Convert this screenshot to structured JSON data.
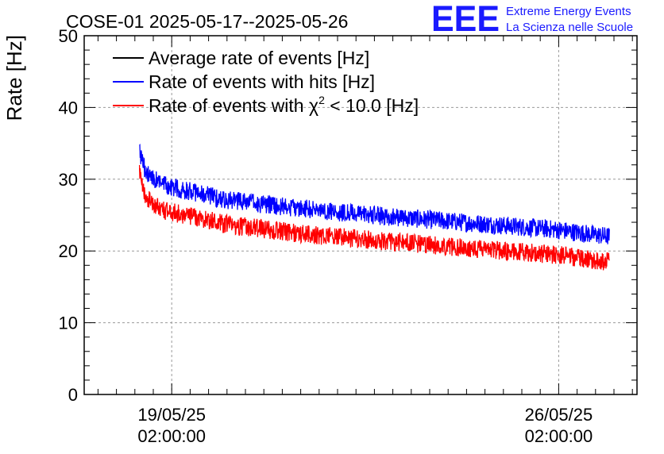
{
  "chart_data": {
    "type": "line",
    "title": "COSE-01 2025-05-17--2025-05-26",
    "xlabel": "",
    "ylabel": "Rate [Hz]",
    "x_axis_type": "time",
    "xlim": [
      "2025-05-17 12:00:00",
      "2025-05-27 12:00:00"
    ],
    "ylim": [
      0,
      50
    ],
    "y_ticks": [
      0,
      10,
      20,
      30,
      40,
      50
    ],
    "x_ticks": [
      {
        "value": "2025-05-19 02:00:00",
        "line1": "19/05/25",
        "line2": "02:00:00"
      },
      {
        "value": "2025-05-26 02:00:00",
        "line1": "26/05/25",
        "line2": "02:00:00"
      }
    ],
    "grid": true,
    "legend_position": "top-left",
    "series": [
      {
        "name": "Average rate of events [Hz]",
        "color": "#000000",
        "x": [],
        "values": []
      },
      {
        "name": "Rate of events with hits [Hz]",
        "color": "#0000ff",
        "noise": 1.3,
        "x": [
          "2025-05-18 12:00",
          "2025-05-18 13:00",
          "2025-05-18 15:00",
          "2025-05-18 18:00",
          "2025-05-19 00:00",
          "2025-05-19 12:00",
          "2025-05-20 00:00",
          "2025-05-21 00:00",
          "2025-05-22 00:00",
          "2025-05-23 00:00",
          "2025-05-24 00:00",
          "2025-05-25 00:00",
          "2025-05-26 00:00",
          "2025-05-26 12:00",
          "2025-05-27 00:00"
        ],
        "values": [
          34.5,
          32.5,
          31.0,
          30.0,
          29.0,
          28.2,
          27.2,
          26.3,
          25.5,
          24.8,
          24.2,
          23.6,
          23.0,
          22.5,
          22.0
        ]
      },
      {
        "name": "Rate of events with χ² < 10.0 [Hz]",
        "color": "#ff0000",
        "noise": 1.3,
        "x": [
          "2025-05-18 12:00",
          "2025-05-18 13:00",
          "2025-05-18 15:00",
          "2025-05-18 18:00",
          "2025-05-19 00:00",
          "2025-05-19 12:00",
          "2025-05-20 00:00",
          "2025-05-21 00:00",
          "2025-05-22 00:00",
          "2025-05-23 00:00",
          "2025-05-24 00:00",
          "2025-05-25 00:00",
          "2025-05-26 00:00",
          "2025-05-26 12:00",
          "2025-05-27 00:00"
        ],
        "values": [
          31.0,
          29.0,
          27.5,
          26.5,
          25.5,
          24.8,
          23.8,
          22.8,
          22.0,
          21.3,
          20.7,
          20.1,
          19.5,
          19.0,
          18.5
        ]
      }
    ],
    "legend": {
      "entries": [
        {
          "text": "Average rate of events [Hz]",
          "color": "#000000"
        },
        {
          "text": "Rate of events with hits [Hz]",
          "color": "#0000ff"
        },
        {
          "text_before": "Rate of events with ",
          "symbol": "χ",
          "superscript": "2",
          "text_after": " < 10.0 [Hz]",
          "color": "#ff0000"
        }
      ]
    }
  },
  "logo": {
    "mark": "EEE",
    "line1": "Extreme Energy Events",
    "line2": "La Scienza nelle Scuole",
    "color": "#1a1aff"
  }
}
